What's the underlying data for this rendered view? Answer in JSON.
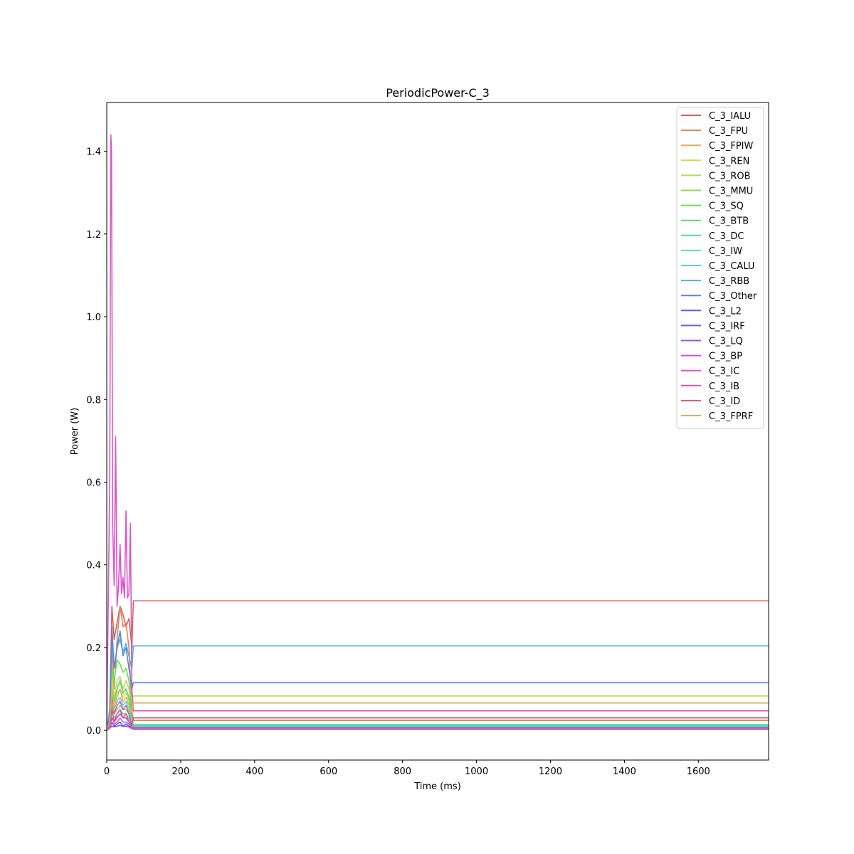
{
  "chart_data": {
    "type": "line",
    "title": "PeriodicPower-C_3",
    "xlabel": "Time (ms)",
    "ylabel": "Power (W)",
    "xlim": [
      0,
      1790
    ],
    "ylim": [
      -0.072,
      1.518
    ],
    "xticks": [
      0,
      200,
      400,
      600,
      800,
      1000,
      1200,
      1400,
      1600
    ],
    "yticks": [
      0.0,
      0.2,
      0.4,
      0.6,
      0.8,
      1.0,
      1.2,
      1.4
    ],
    "ytick_labels": [
      "0.0",
      "0.2",
      "0.4",
      "0.6",
      "0.8",
      "1.0",
      "1.2",
      "1.4"
    ],
    "grid": false,
    "legend_position": "top-right",
    "series": [
      {
        "name": "C_3_IALU",
        "color": "#db5f57",
        "x": [
          0,
          8,
          14,
          20,
          28,
          36,
          44,
          52,
          60,
          68,
          72,
          1790
        ],
        "y": [
          0.0,
          0.05,
          0.3,
          0.22,
          0.26,
          0.3,
          0.28,
          0.25,
          0.27,
          0.2,
          0.313,
          0.313
        ]
      },
      {
        "name": "C_3_FPU",
        "color": "#db8657",
        "x": [
          0,
          8,
          14,
          20,
          28,
          36,
          44,
          52,
          60,
          68,
          72,
          1790
        ],
        "y": [
          0.0,
          0.02,
          0.2,
          0.1,
          0.22,
          0.3,
          0.25,
          0.26,
          0.2,
          0.05,
          0.024,
          0.024
        ]
      },
      {
        "name": "C_3_FPIW",
        "color": "#dbac57",
        "x": [
          0,
          8,
          14,
          20,
          28,
          36,
          44,
          52,
          60,
          68,
          72,
          1790
        ],
        "y": [
          0.0,
          0.02,
          0.15,
          0.06,
          0.1,
          0.12,
          0.09,
          0.1,
          0.08,
          0.03,
          0.008,
          0.008
        ]
      },
      {
        "name": "C_3_REN",
        "color": "#dbd357",
        "x": [
          0,
          8,
          14,
          20,
          28,
          36,
          44,
          52,
          60,
          68,
          72,
          1790
        ],
        "y": [
          0.0,
          0.02,
          0.12,
          0.06,
          0.09,
          0.1,
          0.08,
          0.09,
          0.07,
          0.02,
          0.012,
          0.012
        ]
      },
      {
        "name": "C_3_ROB",
        "color": "#b9db57",
        "x": [
          0,
          8,
          14,
          20,
          28,
          36,
          44,
          52,
          60,
          68,
          72,
          1790
        ],
        "y": [
          0.0,
          0.03,
          0.14,
          0.08,
          0.12,
          0.13,
          0.1,
          0.12,
          0.1,
          0.07,
          0.083,
          0.083
        ]
      },
      {
        "name": "C_3_MMU",
        "color": "#92db57",
        "x": [
          0,
          8,
          14,
          20,
          28,
          36,
          44,
          52,
          60,
          68,
          72,
          1790
        ],
        "y": [
          0.0,
          0.01,
          0.05,
          0.02,
          0.03,
          0.04,
          0.03,
          0.03,
          0.02,
          0.01,
          0.005,
          0.005
        ]
      },
      {
        "name": "C_3_SQ",
        "color": "#6bdb57",
        "x": [
          0,
          8,
          14,
          20,
          28,
          36,
          44,
          52,
          60,
          68,
          72,
          1790
        ],
        "y": [
          0.0,
          0.03,
          0.15,
          0.12,
          0.17,
          0.16,
          0.14,
          0.15,
          0.12,
          0.03,
          0.014,
          0.014
        ]
      },
      {
        "name": "C_3_BTB",
        "color": "#57db6f",
        "x": [
          0,
          8,
          14,
          20,
          28,
          36,
          44,
          52,
          60,
          68,
          72,
          1790
        ],
        "y": [
          0.0,
          0.02,
          0.1,
          0.07,
          0.1,
          0.12,
          0.09,
          0.1,
          0.08,
          0.02,
          0.011,
          0.011
        ]
      },
      {
        "name": "C_3_DC",
        "color": "#57db96",
        "x": [
          0,
          8,
          14,
          20,
          28,
          36,
          44,
          52,
          60,
          68,
          72,
          1790
        ],
        "y": [
          0.0,
          0.01,
          0.06,
          0.04,
          0.05,
          0.06,
          0.05,
          0.05,
          0.04,
          0.01,
          0.007,
          0.007
        ]
      },
      {
        "name": "C_3_IW",
        "color": "#57dbbd",
        "x": [
          0,
          8,
          14,
          20,
          28,
          36,
          44,
          52,
          60,
          68,
          72,
          1790
        ],
        "y": [
          0.0,
          0.01,
          0.05,
          0.03,
          0.04,
          0.05,
          0.04,
          0.04,
          0.03,
          0.01,
          0.009,
          0.009
        ]
      },
      {
        "name": "C_3_CALU",
        "color": "#57d3db",
        "x": [
          0,
          8,
          14,
          20,
          28,
          36,
          44,
          52,
          60,
          68,
          72,
          1790
        ],
        "y": [
          0.0,
          0.02,
          0.08,
          0.05,
          0.07,
          0.08,
          0.06,
          0.07,
          0.05,
          0.02,
          0.013,
          0.013
        ]
      },
      {
        "name": "C_3_RBB",
        "color": "#57acdb",
        "x": [
          0,
          8,
          14,
          20,
          28,
          36,
          44,
          52,
          60,
          68,
          72,
          1790
        ],
        "y": [
          0.0,
          0.05,
          0.22,
          0.15,
          0.2,
          0.22,
          0.19,
          0.21,
          0.18,
          0.15,
          0.204,
          0.204
        ]
      },
      {
        "name": "C_3_Other",
        "color": "#5786db",
        "x": [
          0,
          8,
          14,
          20,
          28,
          36,
          44,
          52,
          60,
          68,
          72,
          1790
        ],
        "y": [
          0.0,
          0.03,
          0.25,
          0.15,
          0.2,
          0.24,
          0.18,
          0.2,
          0.15,
          0.1,
          0.115,
          0.115
        ]
      },
      {
        "name": "C_3_L2",
        "color": "#575fdb",
        "x": [
          0,
          8,
          14,
          20,
          28,
          36,
          44,
          52,
          60,
          68,
          72,
          1790
        ],
        "y": [
          0.0,
          0.005,
          0.02,
          0.01,
          0.015,
          0.02,
          0.01,
          0.015,
          0.01,
          0.005,
          0.006,
          0.006
        ]
      },
      {
        "name": "C_3_IRF",
        "color": "#7957db",
        "x": [
          0,
          8,
          14,
          20,
          28,
          36,
          44,
          52,
          60,
          68,
          72,
          1790
        ],
        "y": [
          0.0,
          0.005,
          0.01,
          0.008,
          0.01,
          0.012,
          0.009,
          0.01,
          0.008,
          0.004,
          0.003,
          0.003
        ]
      },
      {
        "name": "C_3_LQ",
        "color": "#a057db",
        "x": [
          0,
          8,
          14,
          20,
          28,
          36,
          44,
          52,
          60,
          68,
          72,
          1790
        ],
        "y": [
          0.0,
          0.01,
          0.03,
          0.02,
          0.03,
          0.04,
          0.03,
          0.03,
          0.02,
          0.01,
          0.006,
          0.006
        ]
      },
      {
        "name": "C_3_BP",
        "color": "#c657db",
        "x": [
          0,
          8,
          14,
          20,
          28,
          36,
          44,
          52,
          60,
          68,
          72,
          1790
        ],
        "y": [
          0.0,
          0.005,
          0.02,
          0.015,
          0.02,
          0.03,
          0.02,
          0.02,
          0.015,
          0.005,
          0.004,
          0.004
        ]
      },
      {
        "name": "C_3_IC",
        "color": "#db57c6",
        "x": [
          0,
          8,
          11,
          13,
          16,
          20,
          24,
          28,
          32,
          36,
          40,
          44,
          48,
          52,
          56,
          60,
          64,
          68,
          72,
          1790
        ],
        "y": [
          0.0,
          0.6,
          1.44,
          1.4,
          0.5,
          0.35,
          0.71,
          0.3,
          0.35,
          0.45,
          0.33,
          0.37,
          0.32,
          0.53,
          0.32,
          0.33,
          0.5,
          0.1,
          0.047,
          0.047
        ]
      },
      {
        "name": "C_3_IB",
        "color": "#db57a0",
        "x": [
          0,
          8,
          14,
          20,
          28,
          36,
          44,
          52,
          60,
          68,
          72,
          1790
        ],
        "y": [
          0.0,
          0.02,
          0.08,
          0.04,
          0.06,
          0.07,
          0.05,
          0.06,
          0.04,
          0.01,
          0.002,
          0.002
        ]
      },
      {
        "name": "C_3_ID",
        "color": "#db5779",
        "x": [
          0,
          8,
          14,
          20,
          28,
          36,
          44,
          52,
          60,
          68,
          72,
          1790
        ],
        "y": [
          0.0,
          0.01,
          0.05,
          0.02,
          0.04,
          0.05,
          0.03,
          0.04,
          0.02,
          0.01,
          0.03,
          0.03
        ]
      },
      {
        "name": "C_3_FPRF",
        "color": "#dbb257",
        "x": [
          0,
          8,
          14,
          20,
          28,
          36,
          44,
          52,
          60,
          68,
          72,
          1790
        ],
        "y": [
          0.0,
          0.02,
          0.1,
          0.05,
          0.08,
          0.1,
          0.07,
          0.08,
          0.06,
          0.04,
          0.066,
          0.066
        ]
      }
    ]
  }
}
